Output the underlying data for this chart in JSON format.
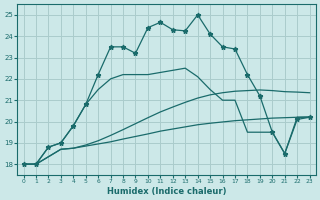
{
  "xlabel": "Humidex (Indice chaleur)",
  "bg_color": "#cce8e8",
  "grid_color": "#aacccc",
  "line_color": "#1a6b6b",
  "xlim": [
    -0.5,
    23.5
  ],
  "ylim": [
    17.5,
    25.5
  ],
  "yticks": [
    18,
    19,
    20,
    21,
    22,
    23,
    24,
    25
  ],
  "xticks": [
    0,
    1,
    2,
    3,
    4,
    5,
    6,
    7,
    8,
    9,
    10,
    11,
    12,
    13,
    14,
    15,
    16,
    17,
    18,
    19,
    20,
    21,
    22,
    23
  ],
  "series": [
    {
      "x": [
        0,
        1,
        2,
        3,
        4,
        5,
        6,
        7,
        8,
        9,
        10,
        11,
        12,
        13,
        14,
        15,
        16,
        17,
        18,
        19,
        20,
        21,
        22,
        23
      ],
      "y": [
        18.0,
        18.0,
        18.35,
        18.7,
        18.75,
        18.85,
        18.95,
        19.05,
        19.18,
        19.3,
        19.42,
        19.55,
        19.65,
        19.75,
        19.85,
        19.92,
        19.98,
        20.04,
        20.08,
        20.12,
        20.16,
        20.18,
        20.2,
        20.22
      ],
      "marker": false
    },
    {
      "x": [
        0,
        1,
        2,
        3,
        4,
        5,
        6,
        7,
        8,
        9,
        10,
        11,
        12,
        13,
        14,
        15,
        16,
        17,
        18,
        19,
        20,
        21,
        22,
        23
      ],
      "y": [
        18.0,
        18.0,
        18.35,
        18.7,
        18.75,
        18.9,
        19.1,
        19.35,
        19.62,
        19.9,
        20.18,
        20.45,
        20.68,
        20.9,
        21.1,
        21.25,
        21.35,
        21.42,
        21.45,
        21.48,
        21.45,
        21.4,
        21.38,
        21.35
      ],
      "marker": false
    },
    {
      "x": [
        0,
        1,
        2,
        3,
        4,
        5,
        6,
        7,
        8,
        9,
        10,
        11,
        12,
        13,
        14,
        15,
        16,
        17,
        18,
        19,
        20,
        21,
        22,
        23
      ],
      "y": [
        18.0,
        18.0,
        18.8,
        19.0,
        19.8,
        20.8,
        21.5,
        22.0,
        22.2,
        22.2,
        22.2,
        22.3,
        22.4,
        22.5,
        22.1,
        21.5,
        21.0,
        21.0,
        19.5,
        19.5,
        19.5,
        18.5,
        20.2,
        20.2
      ],
      "marker": false
    },
    {
      "x": [
        0,
        1,
        2,
        3,
        4,
        5,
        6,
        7,
        8,
        9,
        10,
        11,
        12,
        13,
        14,
        15,
        16,
        17,
        18,
        19,
        20,
        21,
        22,
        23
      ],
      "y": [
        18.0,
        18.0,
        18.8,
        19.0,
        19.8,
        20.8,
        22.2,
        23.5,
        23.5,
        23.2,
        24.4,
        24.65,
        24.3,
        24.25,
        25.0,
        24.1,
        23.5,
        23.4,
        22.2,
        21.2,
        19.5,
        18.5,
        20.1,
        20.2
      ],
      "marker": true
    }
  ]
}
